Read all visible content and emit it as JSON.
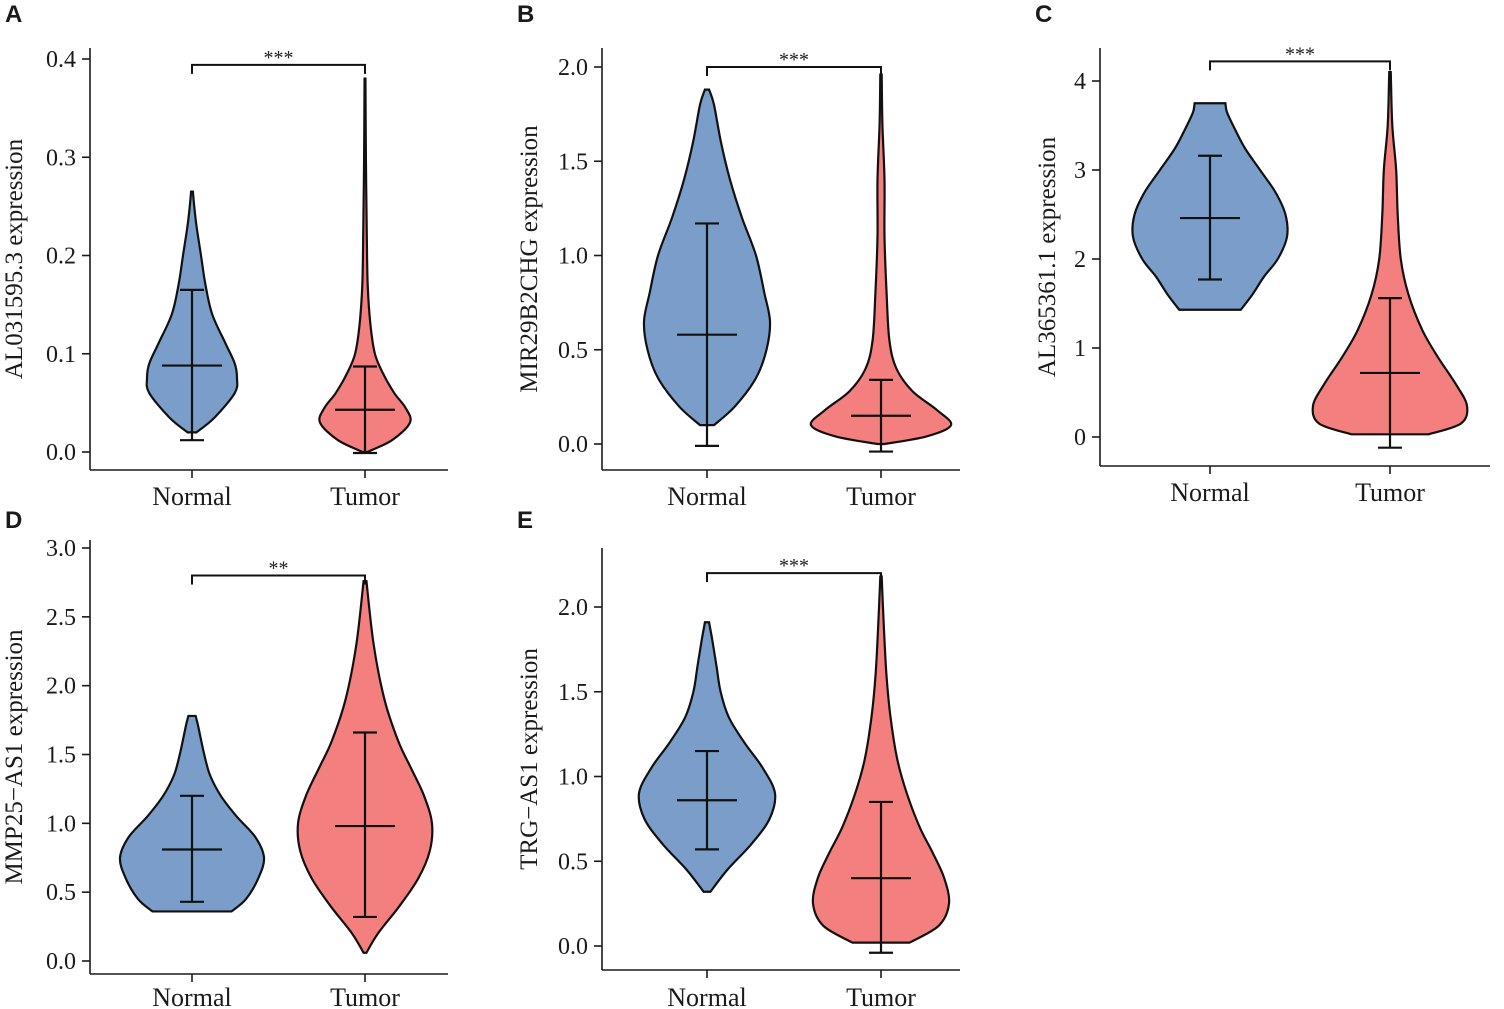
{
  "colors": {
    "normal": "#7a9ec9",
    "tumor": "#f47f7f"
  },
  "chart_data": [
    {
      "letter": "A",
      "type": "violin",
      "ylabel": "AL031595.3 expression",
      "categories": [
        "Normal",
        "Tumor"
      ],
      "ylim": [
        -0.01,
        0.42
      ],
      "yticks": [
        0.0,
        0.1,
        0.2,
        0.3,
        0.4
      ],
      "ytick_labels": [
        "0.0",
        "0.1",
        "0.2",
        "0.3",
        "0.4"
      ],
      "significance": "***",
      "bracket_y": 0.394,
      "series": [
        {
          "name": "Normal",
          "min": 0.02,
          "max": 0.265,
          "mean": 0.088,
          "lower": 0.012,
          "upper": 0.165,
          "density": [
            [
              0.02,
              0.1
            ],
            [
              0.035,
              0.5
            ],
            [
              0.06,
              0.95
            ],
            [
              0.075,
              1.0
            ],
            [
              0.09,
              0.95
            ],
            [
              0.11,
              0.75
            ],
            [
              0.14,
              0.45
            ],
            [
              0.17,
              0.3
            ],
            [
              0.2,
              0.2
            ],
            [
              0.23,
              0.1
            ],
            [
              0.25,
              0.05
            ],
            [
              0.265,
              0.02
            ]
          ]
        },
        {
          "name": "Tumor",
          "min": 0.0,
          "max": 0.38,
          "mean": 0.043,
          "lower": -0.001,
          "upper": 0.087,
          "density": [
            [
              0.0,
              0.05
            ],
            [
              0.012,
              0.6
            ],
            [
              0.03,
              1.0
            ],
            [
              0.045,
              0.9
            ],
            [
              0.06,
              0.65
            ],
            [
              0.08,
              0.4
            ],
            [
              0.1,
              0.22
            ],
            [
              0.13,
              0.12
            ],
            [
              0.17,
              0.06
            ],
            [
              0.22,
              0.04
            ],
            [
              0.3,
              0.02
            ],
            [
              0.38,
              0.01
            ]
          ]
        }
      ]
    },
    {
      "letter": "B",
      "type": "violin",
      "ylabel": "MIR29B2CHG expression",
      "categories": [
        "Normal",
        "Tumor"
      ],
      "ylim": [
        -0.15,
        2.1
      ],
      "yticks": [
        0.0,
        0.5,
        1.0,
        1.5,
        2.0
      ],
      "ytick_labels": [
        "0.0",
        "0.5",
        "1.0",
        "1.5",
        "2.0"
      ],
      "significance": "***",
      "bracket_y": 2.0,
      "series": [
        {
          "name": "Normal",
          "min": 0.1,
          "max": 1.88,
          "mean": 0.58,
          "lower": -0.01,
          "upper": 1.17,
          "density": [
            [
              0.1,
              0.1
            ],
            [
              0.2,
              0.4
            ],
            [
              0.35,
              0.7
            ],
            [
              0.5,
              0.85
            ],
            [
              0.65,
              0.9
            ],
            [
              0.8,
              0.82
            ],
            [
              1.0,
              0.7
            ],
            [
              1.2,
              0.5
            ],
            [
              1.4,
              0.33
            ],
            [
              1.6,
              0.2
            ],
            [
              1.8,
              0.1
            ],
            [
              1.88,
              0.03
            ]
          ]
        },
        {
          "name": "Tumor",
          "min": 0.0,
          "max": 1.96,
          "mean": 0.15,
          "lower": -0.04,
          "upper": 0.34,
          "density": [
            [
              0.0,
              0.05
            ],
            [
              0.04,
              0.65
            ],
            [
              0.1,
              1.0
            ],
            [
              0.18,
              0.8
            ],
            [
              0.28,
              0.45
            ],
            [
              0.4,
              0.22
            ],
            [
              0.55,
              0.12
            ],
            [
              0.8,
              0.08
            ],
            [
              1.1,
              0.05
            ],
            [
              1.4,
              0.05
            ],
            [
              1.7,
              0.02
            ],
            [
              1.96,
              0.01
            ]
          ]
        }
      ]
    },
    {
      "letter": "C",
      "type": "violin",
      "ylabel": "AL365361.1 expression",
      "categories": [
        "Normal",
        "Tumor"
      ],
      "ylim": [
        -0.35,
        4.4
      ],
      "yticks": [
        0,
        1,
        2,
        3,
        4
      ],
      "ytick_labels": [
        "0",
        "1",
        "2",
        "3",
        "4"
      ],
      "significance": "***",
      "bracket_y": 4.22,
      "series": [
        {
          "name": "Normal",
          "min": 1.43,
          "max": 3.75,
          "mean": 2.46,
          "lower": 1.77,
          "upper": 3.16,
          "density": [
            [
              1.43,
              0.4
            ],
            [
              1.6,
              0.55
            ],
            [
              1.8,
              0.7
            ],
            [
              2.0,
              0.88
            ],
            [
              2.25,
              1.0
            ],
            [
              2.5,
              0.98
            ],
            [
              2.75,
              0.85
            ],
            [
              3.0,
              0.65
            ],
            [
              3.25,
              0.45
            ],
            [
              3.5,
              0.3
            ],
            [
              3.65,
              0.22
            ],
            [
              3.75,
              0.2
            ]
          ]
        },
        {
          "name": "Tumor",
          "min": 0.03,
          "max": 4.1,
          "mean": 0.72,
          "lower": -0.12,
          "upper": 1.56,
          "density": [
            [
              0.03,
              0.5
            ],
            [
              0.15,
              0.92
            ],
            [
              0.35,
              1.0
            ],
            [
              0.6,
              0.85
            ],
            [
              0.9,
              0.62
            ],
            [
              1.2,
              0.42
            ],
            [
              1.6,
              0.24
            ],
            [
              2.0,
              0.14
            ],
            [
              2.5,
              0.1
            ],
            [
              3.0,
              0.08
            ],
            [
              3.5,
              0.03
            ],
            [
              4.1,
              0.01
            ]
          ]
        }
      ]
    },
    {
      "letter": "D",
      "type": "violin",
      "ylabel": "MMP25−AS1 expression",
      "categories": [
        "Normal",
        "Tumor"
      ],
      "ylim": [
        -0.1,
        3.05
      ],
      "yticks": [
        0.0,
        0.5,
        1.0,
        1.5,
        2.0,
        2.5,
        3.0
      ],
      "ytick_labels": [
        "0.0",
        "0.5",
        "1.0",
        "1.5",
        "2.0",
        "2.5",
        "3.0"
      ],
      "significance": "**",
      "bracket_y": 2.8,
      "series": [
        {
          "name": "Normal",
          "min": 0.36,
          "max": 1.78,
          "mean": 0.81,
          "lower": 0.43,
          "upper": 1.2,
          "density": [
            [
              0.36,
              0.55
            ],
            [
              0.45,
              0.75
            ],
            [
              0.6,
              0.92
            ],
            [
              0.75,
              1.0
            ],
            [
              0.9,
              0.88
            ],
            [
              1.05,
              0.62
            ],
            [
              1.2,
              0.4
            ],
            [
              1.35,
              0.25
            ],
            [
              1.5,
              0.17
            ],
            [
              1.62,
              0.12
            ],
            [
              1.72,
              0.08
            ],
            [
              1.78,
              0.05
            ]
          ]
        },
        {
          "name": "Tumor",
          "min": 0.06,
          "max": 2.76,
          "mean": 0.98,
          "lower": 0.32,
          "upper": 1.66,
          "density": [
            [
              0.06,
              0.02
            ],
            [
              0.2,
              0.18
            ],
            [
              0.4,
              0.48
            ],
            [
              0.6,
              0.74
            ],
            [
              0.8,
              0.9
            ],
            [
              1.0,
              0.93
            ],
            [
              1.2,
              0.82
            ],
            [
              1.4,
              0.64
            ],
            [
              1.6,
              0.46
            ],
            [
              1.9,
              0.27
            ],
            [
              2.3,
              0.12
            ],
            [
              2.76,
              0.02
            ]
          ]
        }
      ]
    },
    {
      "letter": "E",
      "type": "violin",
      "ylabel": "TRG−AS1 expression",
      "categories": [
        "Normal",
        "Tumor"
      ],
      "ylim": [
        -0.1,
        2.35
      ],
      "yticks": [
        0.0,
        0.5,
        1.0,
        1.5,
        2.0
      ],
      "ytick_labels": [
        "0.0",
        "0.5",
        "1.0",
        "1.5",
        "2.0"
      ],
      "significance": "***",
      "bracket_y": 2.2,
      "series": [
        {
          "name": "Normal",
          "min": 0.32,
          "max": 1.91,
          "mean": 0.86,
          "lower": 0.57,
          "upper": 1.15,
          "density": [
            [
              0.32,
              0.05
            ],
            [
              0.45,
              0.3
            ],
            [
              0.6,
              0.65
            ],
            [
              0.75,
              0.92
            ],
            [
              0.9,
              1.0
            ],
            [
              1.05,
              0.82
            ],
            [
              1.2,
              0.55
            ],
            [
              1.35,
              0.32
            ],
            [
              1.5,
              0.2
            ],
            [
              1.65,
              0.14
            ],
            [
              1.8,
              0.08
            ],
            [
              1.91,
              0.03
            ]
          ]
        },
        {
          "name": "Tumor",
          "min": 0.02,
          "max": 2.18,
          "mean": 0.4,
          "lower": -0.04,
          "upper": 0.85,
          "density": [
            [
              0.02,
              0.42
            ],
            [
              0.12,
              0.85
            ],
            [
              0.25,
              1.0
            ],
            [
              0.4,
              0.93
            ],
            [
              0.55,
              0.76
            ],
            [
              0.7,
              0.57
            ],
            [
              0.9,
              0.38
            ],
            [
              1.1,
              0.24
            ],
            [
              1.35,
              0.14
            ],
            [
              1.6,
              0.08
            ],
            [
              1.9,
              0.04
            ],
            [
              2.18,
              0.01
            ]
          ]
        }
      ]
    }
  ]
}
